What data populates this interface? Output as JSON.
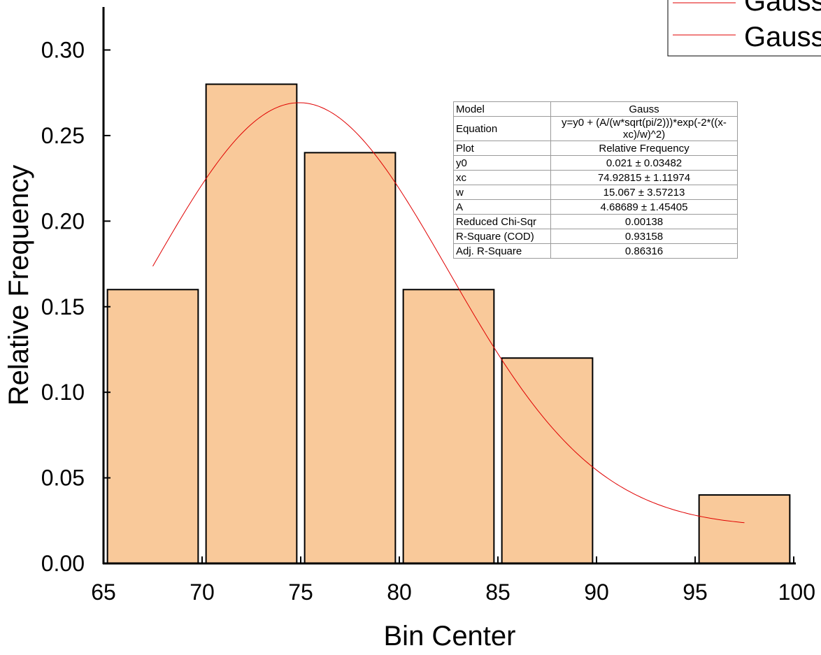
{
  "chart_data": {
    "type": "bar",
    "bin_centers": [
      67.5,
      72.5,
      77.5,
      82.5,
      87.5,
      97.5
    ],
    "bin_width": 5,
    "values": [
      0.16,
      0.28,
      0.24,
      0.16,
      0.12,
      0.04
    ],
    "xlabel": "Bin Center",
    "ylabel": "Relative Frequency",
    "xlim": [
      65,
      100
    ],
    "ylim": [
      0,
      0.325
    ],
    "xticks": [
      "65",
      "70",
      "75",
      "80",
      "85",
      "90",
      "95",
      "100"
    ],
    "yticks": [
      "0.00",
      "0.05",
      "0.10",
      "0.15",
      "0.20",
      "0.25",
      "0.30"
    ],
    "bar_color": "#F9C99A",
    "fit": {
      "model": "Gauss",
      "y0": 0.021,
      "xc": 74.92815,
      "w": 15.067,
      "A": 4.68689,
      "x_range": [
        67.5,
        97.5
      ],
      "color": "#E00000"
    },
    "legend": {
      "entries": [
        "Gauss",
        "Gauss"
      ],
      "placement": "top-right"
    }
  },
  "fit_table": {
    "rows": [
      {
        "key": "Model",
        "value": "Gauss"
      },
      {
        "key": "Equation",
        "value": "y=y0 + (A/(w*sqrt(pi/2)))*exp(-2*((x-xc)/w)^2)"
      },
      {
        "key": "Plot",
        "value": "Relative Frequency"
      },
      {
        "key": "y0",
        "value": "0.021 ± 0.03482"
      },
      {
        "key": "xc",
        "value": "74.92815 ± 1.11974"
      },
      {
        "key": "w",
        "value": "15.067 ± 3.57213"
      },
      {
        "key": "A",
        "value": "4.68689 ± 1.45405"
      },
      {
        "key": "Reduced Chi-Sqr",
        "value": "0.00138"
      },
      {
        "key": "R-Square (COD)",
        "value": "0.93158"
      },
      {
        "key": "Adj. R-Square",
        "value": "0.86316"
      }
    ]
  }
}
